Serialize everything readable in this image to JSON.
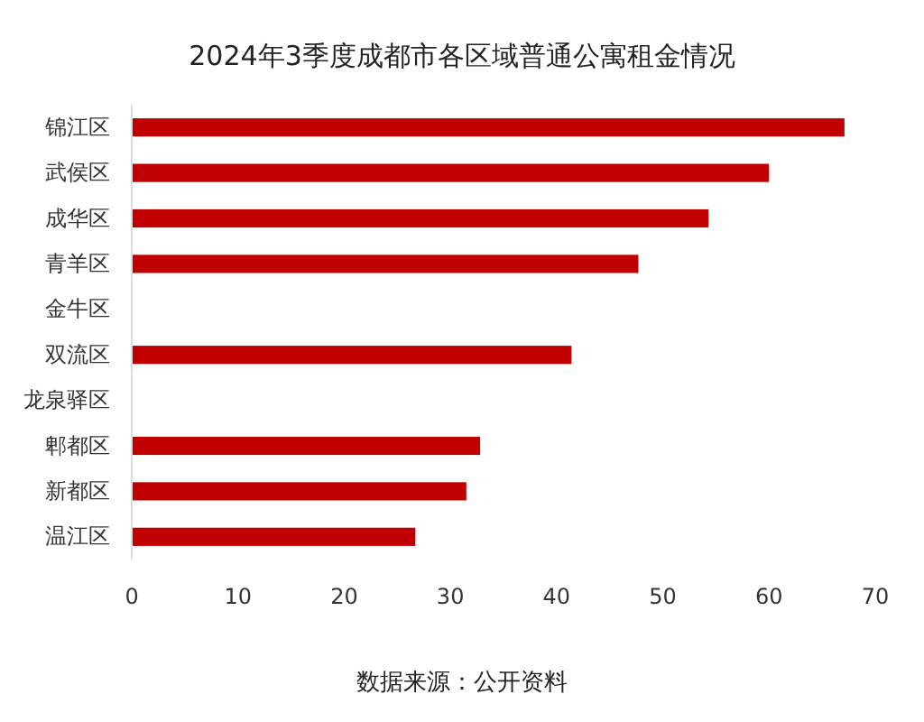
{
  "chart_data": {
    "type": "bar",
    "orientation": "horizontal",
    "title": "2024年3季度成都市各区域普通公寓租金情况",
    "categories": [
      "锦江区",
      "武侯区",
      "成华区",
      "青羊区",
      "金牛区",
      "双流区",
      "龙泉驿区",
      "郫都区",
      "新都区",
      "温江区"
    ],
    "values": [
      67.1,
      60.0,
      54.3,
      47.7,
      null,
      41.4,
      null,
      32.8,
      31.5,
      26.7
    ],
    "color": "#c00000",
    "xlim": [
      0,
      70
    ],
    "xticks": [
      0,
      10,
      20,
      30,
      40,
      50,
      60,
      70
    ],
    "annotations": [
      "数据来源：公开资料"
    ]
  }
}
